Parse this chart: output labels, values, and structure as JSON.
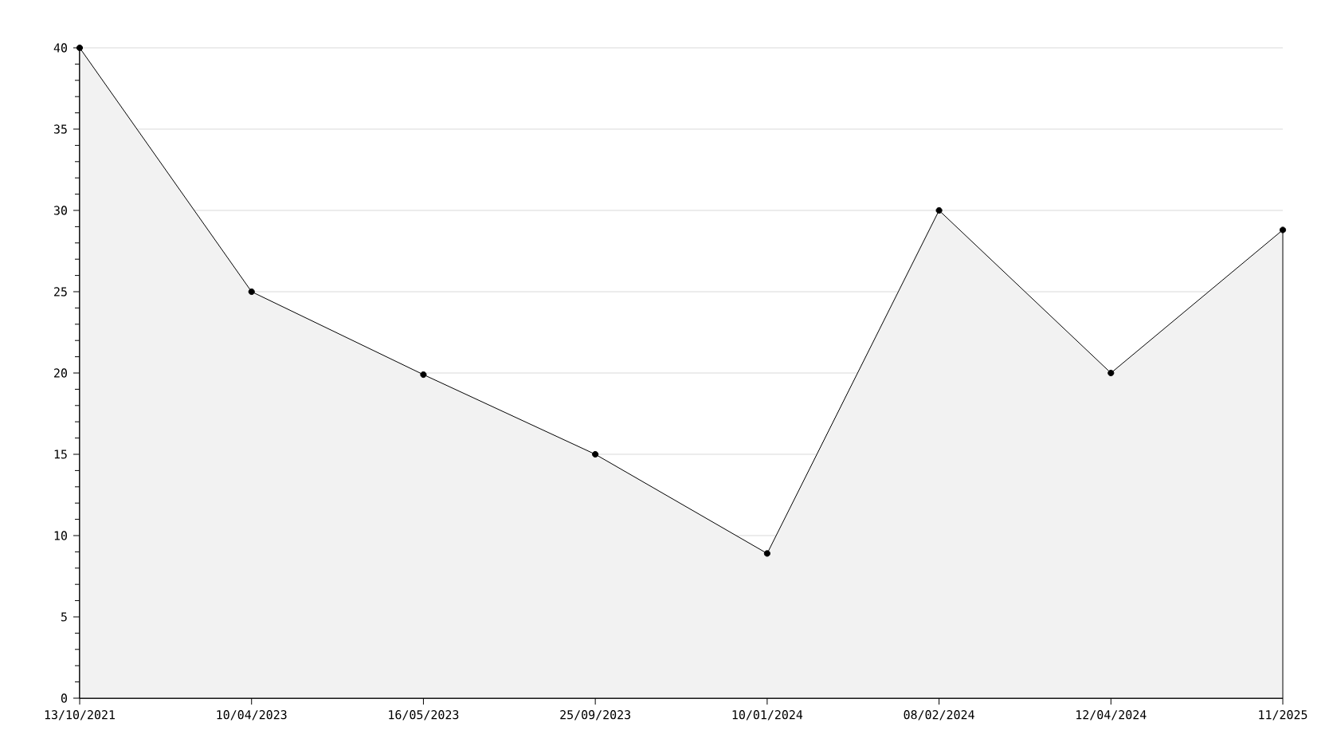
{
  "chart_data": {
    "type": "area",
    "categories": [
      "13/10/2021",
      "10/04/2023",
      "16/05/2023",
      "25/09/2023",
      "10/01/2024",
      "08/02/2024",
      "12/04/2024",
      "11/2025"
    ],
    "values": [
      40,
      25,
      19.9,
      15,
      8.9,
      30,
      20,
      28.8
    ],
    "color": "#000000",
    "ylim": [
      0,
      40
    ],
    "yticks": [
      0,
      5,
      10,
      15,
      20,
      25,
      30,
      35,
      40
    ],
    "grid": "y",
    "marker": "circle",
    "line_style": "solid"
  }
}
